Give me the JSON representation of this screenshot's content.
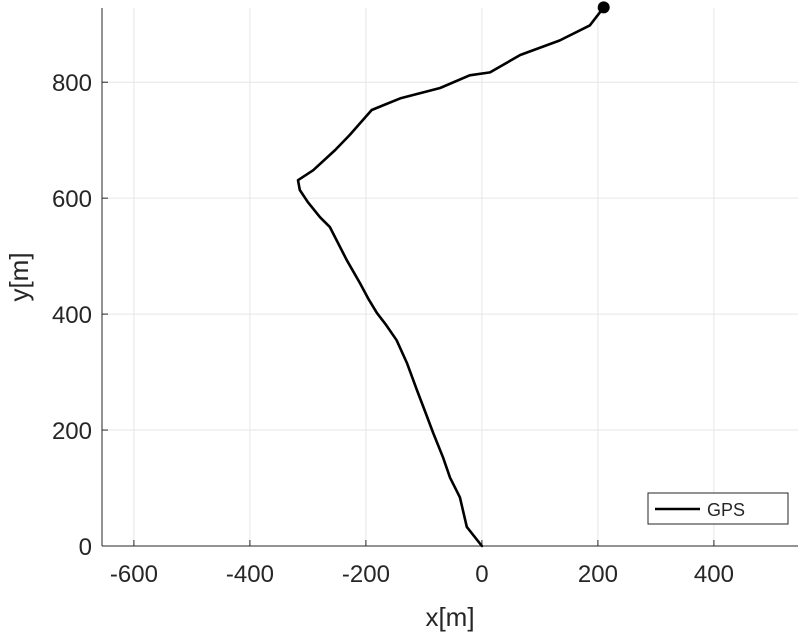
{
  "chart_data": {
    "type": "line",
    "title": "",
    "xlabel": "x[m]",
    "ylabel": "y[m]",
    "xlim": [
      -655,
      545
    ],
    "ylim": [
      0,
      928
    ],
    "xticks": [
      -600,
      -400,
      -200,
      0,
      200,
      400
    ],
    "yticks": [
      0,
      200,
      400,
      600,
      800
    ],
    "grid": true,
    "legend": {
      "position": "bottom-right",
      "entries": [
        "GPS"
      ]
    },
    "series": [
      {
        "name": "GPS",
        "color": "#000000",
        "x": [
          0,
          -26,
          -38,
          -55,
          -67,
          -84,
          -98,
          -112,
          -129,
          -147,
          -165,
          -181,
          -195,
          -210,
          -233,
          -262,
          -279,
          -300,
          -314,
          -317,
          -291,
          -253,
          -228,
          -190,
          -141,
          -72,
          -21,
          14,
          66,
          134,
          186,
          210
        ],
        "y": [
          0,
          33,
          84,
          118,
          153,
          195,
          232,
          269,
          315,
          355,
          381,
          402,
          425,
          453,
          493,
          550,
          567,
          593,
          614,
          631,
          648,
          683,
          709,
          752,
          772,
          790,
          812,
          817,
          847,
          872,
          898,
          929
        ]
      }
    ],
    "end_marker": {
      "x": 210,
      "y": 929
    }
  }
}
